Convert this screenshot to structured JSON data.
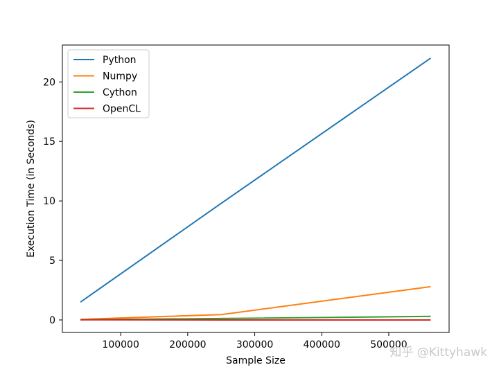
{
  "chart_data": {
    "type": "line",
    "title": "",
    "xlabel": "Sample Size",
    "ylabel": "Execution Time (in Seconds)",
    "xlim": [
      13000,
      590000
    ],
    "ylim": [
      -1.05,
      23.1
    ],
    "xticks": [
      100000,
      200000,
      300000,
      400000,
      500000
    ],
    "yticks": [
      0,
      5,
      10,
      15,
      20
    ],
    "xtick_labels": [
      "100000",
      "200000",
      "300000",
      "400000",
      "500000"
    ],
    "ytick_labels": [
      "0",
      "5",
      "10",
      "15",
      "20"
    ],
    "grid": false,
    "legend_position": "top-left",
    "series": [
      {
        "name": "Python",
        "color": "#1f77b4",
        "x": [
          40000,
          250000,
          562500
        ],
        "y": [
          1.5,
          9.8,
          22.0
        ]
      },
      {
        "name": "Numpy",
        "color": "#ff7f0e",
        "x": [
          40000,
          250000,
          562500
        ],
        "y": [
          0.05,
          0.45,
          2.8
        ]
      },
      {
        "name": "Cython",
        "color": "#2ca02c",
        "x": [
          40000,
          250000,
          562500
        ],
        "y": [
          0.02,
          0.12,
          0.3
        ]
      },
      {
        "name": "OpenCL",
        "color": "#d62728",
        "x": [
          40000,
          250000,
          562500
        ],
        "y": [
          0.01,
          0.0,
          0.0
        ]
      }
    ]
  },
  "watermark": "知乎 @Kittyhawk"
}
